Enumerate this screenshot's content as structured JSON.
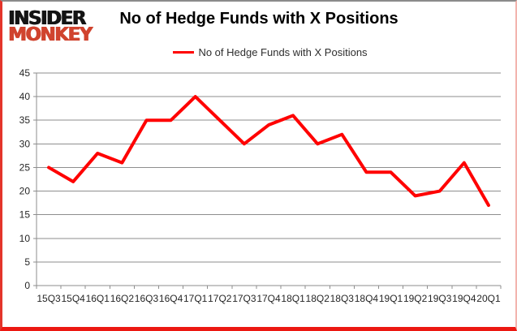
{
  "logo": {
    "line1": "INSIDER",
    "line2": "MONKEY",
    "line1_color": "#141414",
    "line2_color": "#d0432e"
  },
  "chart_data": {
    "type": "line",
    "title": "No of Hedge Funds with X Positions",
    "categories": [
      "15Q3",
      "15Q4",
      "16Q1",
      "16Q2",
      "16Q3",
      "16Q4",
      "17Q1",
      "17Q2",
      "17Q3",
      "17Q4",
      "18Q1",
      "18Q2",
      "18Q3",
      "18Q4",
      "19Q1",
      "19Q2",
      "19Q3",
      "19Q4",
      "20Q1"
    ],
    "series": [
      {
        "name": "No of Hedge Funds with X Positions",
        "color": "#ff0000",
        "values": [
          25,
          22,
          28,
          26,
          35,
          35,
          40,
          35,
          30,
          34,
          36,
          30,
          32,
          24,
          24,
          19,
          20,
          26,
          17
        ]
      }
    ],
    "ylim": [
      0,
      45
    ],
    "ytick_step": 5,
    "xlabel": "",
    "ylabel": "",
    "grid": true,
    "legend_position": "top-center"
  },
  "colors": {
    "line": "#ff0000",
    "grid": "#8e8e8e",
    "axis": "#8e8e8e",
    "tick_label": "#262626",
    "border_top": "#8b8b8b",
    "border_left": "#e4352b",
    "border_right": "#f3b4ae",
    "border_bottom": "#ec1812",
    "logo_red": "#d0432e"
  }
}
